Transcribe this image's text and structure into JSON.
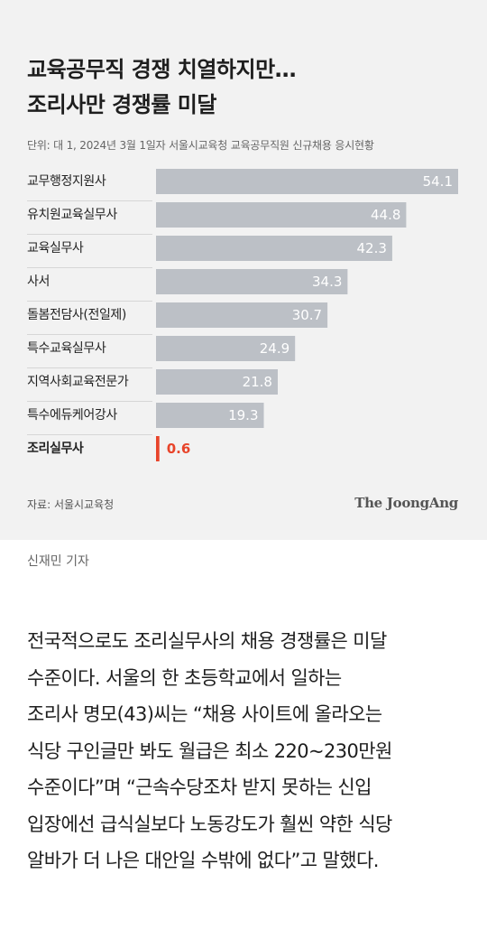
{
  "chart_data": {
    "type": "bar",
    "orientation": "horizontal",
    "title_lines": [
      "교육공무직 경쟁 치열하지만…",
      "조리사만 경쟁률 미달"
    ],
    "subtitle": "단위: 대 1, 2024년 3월 1일자 서울시교육청 교육공무직원 신규채용 응시현황",
    "categories": [
      "교무행정지원사",
      "유치원교육실무사",
      "교육실무사",
      "사서",
      "돌봄전담사(전일제)",
      "특수교육실무사",
      "지역사회교육전문가",
      "특수에듀케어강사",
      "조리실무사"
    ],
    "values": [
      54.1,
      44.8,
      42.3,
      34.3,
      30.7,
      24.9,
      21.8,
      19.3,
      0.6
    ],
    "value_labels": [
      "54.1",
      "44.8",
      "42.3",
      "34.3",
      "30.7",
      "24.9",
      "21.8",
      "19.3",
      "0.6"
    ],
    "highlight_index": 8,
    "xlim": [
      0,
      54.1
    ],
    "grid": false,
    "legend": "none",
    "colors": {
      "bar": "#bcc0c6",
      "highlight": "#e8442a",
      "label": "#222222",
      "value_label": "#ffffff",
      "divider": "#d6d6d6"
    },
    "source": "자료: 서울시교육청",
    "brand": "The JoongAng"
  },
  "credit": "신재민 기자",
  "article_lines": [
    "전국적으로도 조리실무사의 채용 경쟁률은 미달",
    "수준이다. 서울의 한 초등학교에서 일하는",
    "조리사 명모(43)씨는 “채용 사이트에 올라오는",
    "식당 구인글만 봐도 월급은 최소 220~230만원",
    "수준이다”며 “근속수당조차 받지 못하는 신입",
    "입장에선 급식실보다 노동강도가 훨씬 약한 식당",
    "알바가 더 나은 대안일 수밖에 없다”고 말했다."
  ]
}
